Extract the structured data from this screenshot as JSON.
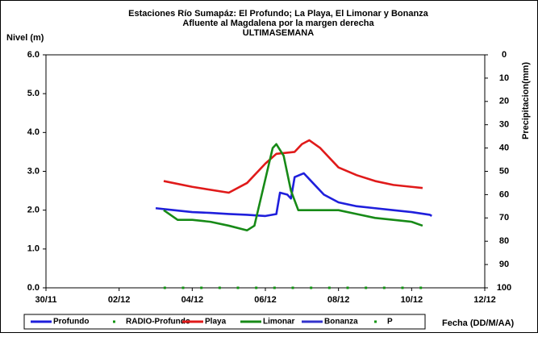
{
  "chart_data": {
    "type": "line",
    "title": [
      "Estaciones Río Sumapáz: El Profundo; La Playa, El Limonar y Bonanza",
      "Afluente al Magdalena por la margen derecha",
      "ULTIMASEMANA"
    ],
    "ylabel": "Nivel (m)",
    "y2label": "Precipitacion(mm)",
    "xlabel": "Fecha (DD/M/AA)",
    "xlim": [
      0,
      12
    ],
    "xticks": [
      {
        "value": 0,
        "label": "30/11"
      },
      {
        "value": 2,
        "label": "02/12"
      },
      {
        "value": 4,
        "label": "04/12"
      },
      {
        "value": 6,
        "label": "06/12"
      },
      {
        "value": 8,
        "label": "08/12"
      },
      {
        "value": 10,
        "label": "10/12"
      },
      {
        "value": 12,
        "label": "12/12"
      }
    ],
    "ylim": [
      0,
      6
    ],
    "yticks": [
      {
        "value": 0,
        "label": "0.0"
      },
      {
        "value": 1,
        "label": "1.0"
      },
      {
        "value": 2,
        "label": "2.0"
      },
      {
        "value": 3,
        "label": "3.0"
      },
      {
        "value": 4,
        "label": "4.0"
      },
      {
        "value": 5,
        "label": "5.0"
      },
      {
        "value": 6,
        "label": "6.0"
      }
    ],
    "y2lim": [
      100,
      0
    ],
    "y2ticks": [
      0,
      10,
      20,
      30,
      40,
      50,
      60,
      70,
      80,
      90,
      100
    ],
    "legend": "bottom",
    "series": [
      {
        "name": "Profundo",
        "color": "#1f1fdc",
        "style": "line",
        "x": [
          3.0,
          3.5,
          4.0,
          4.5,
          5.0,
          5.5,
          6.0,
          6.3,
          6.4,
          6.6,
          6.7,
          6.8,
          7.05,
          7.3,
          7.6,
          8.0,
          8.5,
          9.0,
          9.5,
          10.0,
          10.5,
          10.55
        ],
        "values": [
          2.05,
          2.0,
          1.95,
          1.93,
          1.9,
          1.88,
          1.85,
          1.9,
          2.45,
          2.4,
          2.3,
          2.85,
          2.95,
          2.7,
          2.4,
          2.2,
          2.1,
          2.05,
          2.0,
          1.95,
          1.88,
          1.85
        ]
      },
      {
        "name": "RADIO-Profundo",
        "color": "#129612",
        "style": "markers",
        "x": [
          3.25,
          3.75,
          4.25,
          4.75,
          5.25,
          5.75,
          6.25,
          6.75,
          7.25,
          7.75,
          8.25,
          8.75,
          9.25,
          9.75,
          10.25
        ],
        "values": [
          0,
          0,
          0,
          0,
          0,
          0,
          0,
          0,
          0,
          0,
          0,
          0,
          0,
          0,
          0
        ]
      },
      {
        "name": "Playa",
        "color": "#e01a1a",
        "style": "line",
        "x": [
          3.22,
          4.0,
          5.0,
          5.5,
          6.0,
          6.3,
          6.8,
          7.0,
          7.2,
          7.5,
          8.0,
          8.5,
          9.0,
          9.5,
          10.0,
          10.3
        ],
        "values": [
          2.75,
          2.6,
          2.45,
          2.7,
          3.2,
          3.45,
          3.5,
          3.7,
          3.8,
          3.6,
          3.1,
          2.9,
          2.75,
          2.65,
          2.6,
          2.57
        ]
      },
      {
        "name": "Limonar",
        "color": "#178a17",
        "style": "line",
        "x": [
          3.22,
          3.6,
          4.0,
          4.5,
          5.0,
          5.5,
          5.7,
          6.0,
          6.2,
          6.3,
          6.5,
          6.7,
          6.9,
          7.2,
          8.0,
          8.5,
          9.0,
          9.5,
          10.0,
          10.3
        ],
        "values": [
          2.0,
          1.75,
          1.75,
          1.7,
          1.6,
          1.48,
          1.6,
          2.8,
          3.6,
          3.7,
          3.4,
          2.5,
          2.0,
          2.0,
          2.0,
          1.9,
          1.8,
          1.75,
          1.7,
          1.6
        ]
      },
      {
        "name": "Bonanza",
        "color": "#3333cc",
        "style": "line",
        "x": [],
        "values": []
      },
      {
        "name": "P",
        "color": "#129612",
        "style": "markers",
        "axis": "y2",
        "x": [],
        "values": []
      }
    ]
  }
}
